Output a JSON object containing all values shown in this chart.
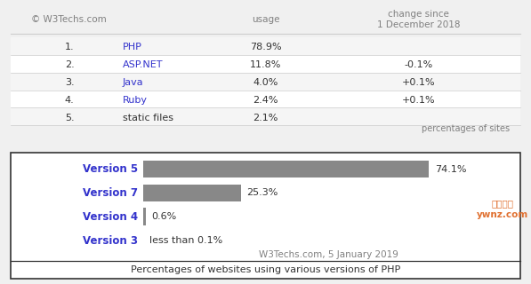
{
  "bg_color": "#f0f0f0",
  "table_bg": "#ffffff",
  "link_color": "#3333cc",
  "text_color": "#333333",
  "gray_color": "#808080",
  "table_rows": [
    {
      "rank": "1.",
      "name": "PHP",
      "name_colored": true,
      "usage": "78.9%",
      "change": ""
    },
    {
      "rank": "2.",
      "name": "ASP.NET",
      "name_colored": true,
      "usage": "11.8%",
      "change": "-0.1%"
    },
    {
      "rank": "3.",
      "name": "Java",
      "name_colored": true,
      "usage": "4.0%",
      "change": "+0.1%"
    },
    {
      "rank": "4.",
      "name": "Ruby",
      "name_colored": true,
      "usage": "2.4%",
      "change": "+0.1%"
    },
    {
      "rank": "5.",
      "name": "static files",
      "name_colored": false,
      "usage": "2.1%",
      "change": ""
    }
  ],
  "copyright_text": "© W3Techs.com",
  "usage_header": "usage",
  "change_header": "change since\n1 December 2018",
  "footer_text": "percentages of sites",
  "bar_versions": [
    "Version 5",
    "Version 7",
    "Version 4",
    "Version 3"
  ],
  "bar_values": [
    74.1,
    25.3,
    0.6,
    0.0
  ],
  "bar_labels": [
    "74.1%",
    "25.3%",
    "0.6%",
    "less than 0.1%"
  ],
  "bar_color": "#888888",
  "bar_label_color": "#333333",
  "version_label_color": "#3333cc",
  "bar_chart_title": "W3Techs.com, 5 January 2019",
  "bar_chart_footer": "Percentages of websites using various versions of PHP",
  "bar_chart_bg": "#ffffff",
  "watermark_text": "云网牛站\nywnz.com",
  "watermark_color": "#e07030",
  "divider_color": "#cccccc",
  "border_color": "#333333"
}
